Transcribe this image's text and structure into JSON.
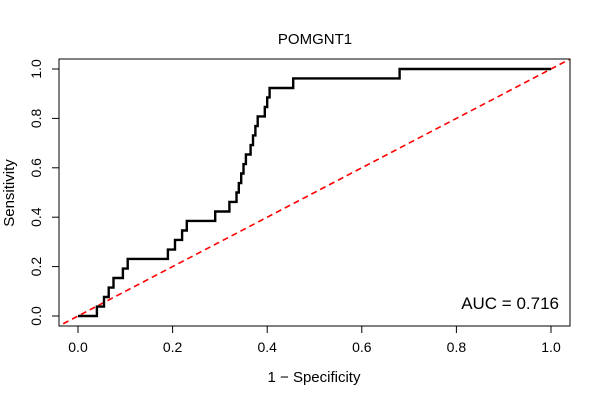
{
  "chart_data": {
    "type": "line",
    "title": "POMGNT1",
    "xlabel": "1 − Specificity",
    "ylabel": "Sensitivity",
    "xlim": [
      0,
      1
    ],
    "ylim": [
      0,
      1
    ],
    "x_ticks": [
      0.0,
      0.2,
      0.4,
      0.6,
      0.8,
      1.0
    ],
    "x_tick_labels": [
      "0.0",
      "0.2",
      "0.4",
      "0.6",
      "0.8",
      "1.0"
    ],
    "y_ticks": [
      0.0,
      0.2,
      0.4,
      0.6,
      0.8,
      1.0
    ],
    "y_tick_labels": [
      "0.0",
      "0.2",
      "0.4",
      "0.6",
      "0.8",
      "1.0"
    ],
    "annotation": "AUC = 0.716",
    "grid": false,
    "series": [
      {
        "name": "ROC",
        "color": "#000000",
        "style": "solid",
        "points": [
          [
            0.0,
            0.0
          ],
          [
            0.04,
            0.0
          ],
          [
            0.04,
            0.038
          ],
          [
            0.055,
            0.038
          ],
          [
            0.055,
            0.077
          ],
          [
            0.065,
            0.077
          ],
          [
            0.065,
            0.115
          ],
          [
            0.075,
            0.115
          ],
          [
            0.075,
            0.154
          ],
          [
            0.095,
            0.154
          ],
          [
            0.095,
            0.192
          ],
          [
            0.105,
            0.192
          ],
          [
            0.105,
            0.231
          ],
          [
            0.19,
            0.231
          ],
          [
            0.19,
            0.269
          ],
          [
            0.205,
            0.269
          ],
          [
            0.205,
            0.308
          ],
          [
            0.22,
            0.308
          ],
          [
            0.22,
            0.346
          ],
          [
            0.23,
            0.346
          ],
          [
            0.23,
            0.385
          ],
          [
            0.29,
            0.385
          ],
          [
            0.29,
            0.423
          ],
          [
            0.32,
            0.423
          ],
          [
            0.32,
            0.462
          ],
          [
            0.335,
            0.462
          ],
          [
            0.335,
            0.5
          ],
          [
            0.34,
            0.5
          ],
          [
            0.34,
            0.538
          ],
          [
            0.345,
            0.538
          ],
          [
            0.345,
            0.577
          ],
          [
            0.35,
            0.577
          ],
          [
            0.35,
            0.615
          ],
          [
            0.355,
            0.615
          ],
          [
            0.355,
            0.654
          ],
          [
            0.365,
            0.654
          ],
          [
            0.365,
            0.692
          ],
          [
            0.37,
            0.692
          ],
          [
            0.37,
            0.731
          ],
          [
            0.375,
            0.731
          ],
          [
            0.375,
            0.769
          ],
          [
            0.38,
            0.769
          ],
          [
            0.38,
            0.808
          ],
          [
            0.395,
            0.808
          ],
          [
            0.395,
            0.846
          ],
          [
            0.4,
            0.846
          ],
          [
            0.4,
            0.885
          ],
          [
            0.405,
            0.885
          ],
          [
            0.405,
            0.923
          ],
          [
            0.455,
            0.923
          ],
          [
            0.455,
            0.962
          ],
          [
            0.68,
            0.962
          ],
          [
            0.68,
            1.0
          ],
          [
            1.0,
            1.0
          ]
        ]
      },
      {
        "name": "reference",
        "color": "#ff0000",
        "style": "dashed",
        "points": [
          [
            -0.05,
            -0.05
          ],
          [
            1.05,
            1.05
          ]
        ]
      }
    ]
  }
}
